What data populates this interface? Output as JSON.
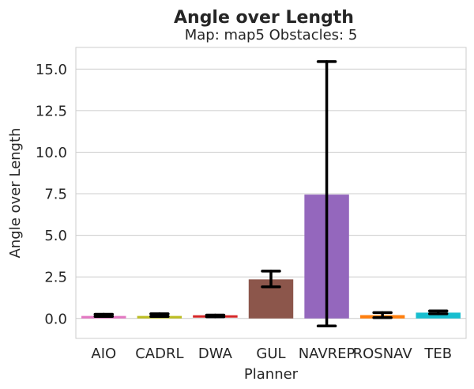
{
  "chart_data": {
    "type": "bar",
    "suptitle": "Angle over Length",
    "title": "Map: map5 Obstacles: 5",
    "xlabel": "Planner",
    "ylabel": "Angle over Length",
    "ylim": [
      -1.2,
      16.3
    ],
    "yticks": [
      "0.0",
      "2.5",
      "5.0",
      "7.5",
      "10.0",
      "12.5",
      "15.0"
    ],
    "grid": "horizontal",
    "categories": [
      "AIO",
      "CADRL",
      "DWA",
      "GUL",
      "NAVREP",
      "ROSNAV",
      "TEB"
    ],
    "values": [
      0.15,
      0.15,
      0.12,
      2.35,
      7.45,
      0.2,
      0.35
    ],
    "error_low": [
      0.12,
      0.12,
      0.1,
      1.9,
      -0.45,
      0.05,
      0.28
    ],
    "error_high": [
      0.25,
      0.28,
      0.2,
      2.85,
      15.45,
      0.35,
      0.45
    ],
    "colors": [
      "#e377c2",
      "#bcbd22",
      "#d62728",
      "#8c564b",
      "#9467bd",
      "#ff7f0e",
      "#17becf"
    ]
  }
}
